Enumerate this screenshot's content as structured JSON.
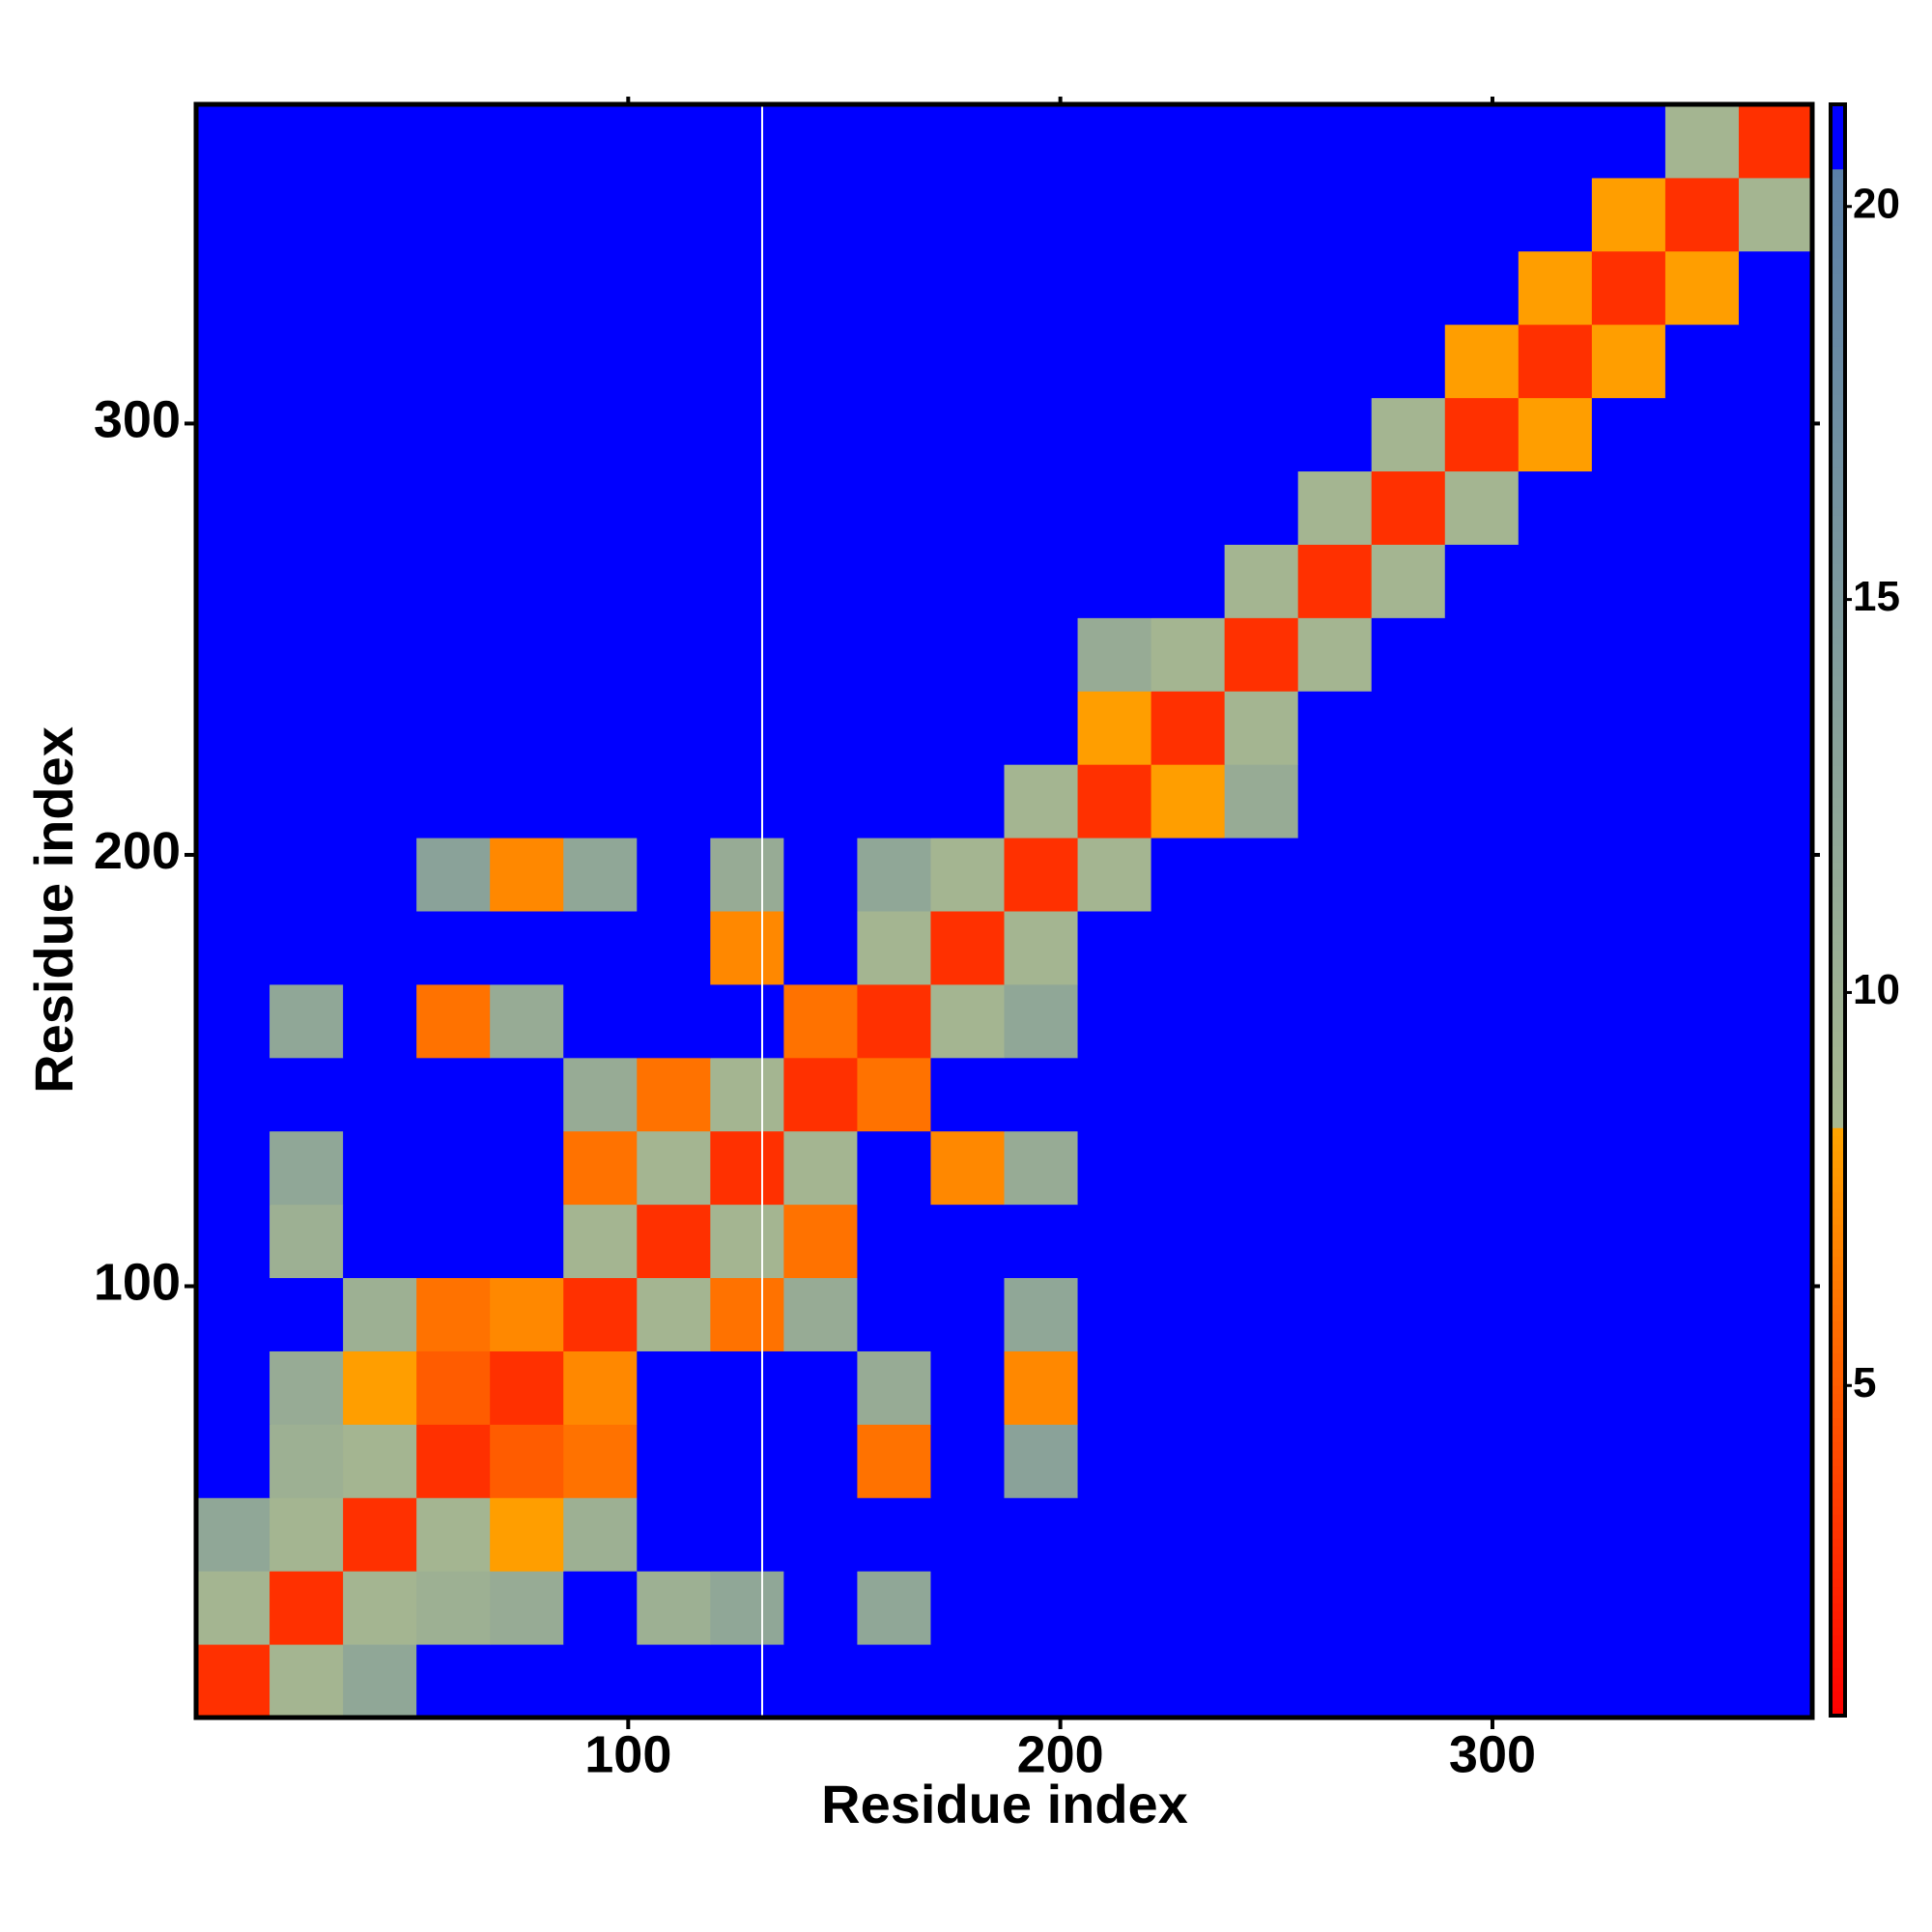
{
  "chart_data": {
    "type": "heatmap",
    "xlabel": "Residue index",
    "ylabel": "Residue index",
    "xlim": [
      0,
      374
    ],
    "ylim": [
      0,
      374
    ],
    "xticks": [
      100,
      200,
      300
    ],
    "yticks": [
      100,
      200,
      300
    ],
    "bins": [
      0,
      17,
      34,
      51,
      68,
      85,
      102,
      119,
      136,
      153,
      170,
      187,
      204,
      221,
      238,
      255,
      272,
      289,
      306,
      323,
      340,
      357,
      374
    ],
    "values": [
      [
        3,
        9,
        12,
        21,
        21,
        21,
        21,
        21,
        21,
        21,
        21,
        21,
        21,
        21,
        21,
        21,
        21,
        21,
        21,
        21,
        21,
        21
      ],
      [
        9,
        3,
        9,
        10,
        11,
        21,
        10,
        12,
        21,
        12,
        21,
        21,
        21,
        21,
        21,
        21,
        21,
        21,
        21,
        21,
        21,
        21
      ],
      [
        12,
        9,
        3,
        9,
        8,
        10,
        21,
        21,
        21,
        21,
        21,
        21,
        21,
        21,
        21,
        21,
        21,
        21,
        21,
        21,
        21,
        21
      ],
      [
        21,
        10,
        9,
        3,
        5,
        6,
        21,
        21,
        21,
        6,
        21,
        13,
        21,
        21,
        21,
        21,
        21,
        21,
        21,
        21,
        21,
        21
      ],
      [
        21,
        11,
        8,
        5,
        3,
        7,
        21,
        21,
        21,
        11,
        21,
        7,
        21,
        21,
        21,
        21,
        21,
        21,
        21,
        21,
        21,
        21
      ],
      [
        21,
        21,
        10,
        6,
        7,
        3,
        9,
        6,
        11,
        21,
        21,
        12,
        21,
        21,
        21,
        21,
        21,
        21,
        21,
        21,
        21,
        21
      ],
      [
        21,
        10,
        21,
        21,
        21,
        9,
        3,
        9,
        6,
        21,
        21,
        21,
        21,
        21,
        21,
        21,
        21,
        21,
        21,
        21,
        21,
        21
      ],
      [
        21,
        12,
        21,
        21,
        21,
        6,
        9,
        3,
        9,
        21,
        7,
        11,
        21,
        21,
        21,
        21,
        21,
        21,
        21,
        21,
        21,
        21
      ],
      [
        21,
        21,
        21,
        21,
        21,
        11,
        6,
        9,
        3,
        6,
        21,
        21,
        21,
        21,
        21,
        21,
        21,
        21,
        21,
        21,
        21,
        21
      ],
      [
        21,
        12,
        21,
        6,
        11,
        21,
        21,
        21,
        6,
        3,
        9,
        12,
        21,
        21,
        21,
        21,
        21,
        21,
        21,
        21,
        21,
        21
      ],
      [
        21,
        21,
        21,
        21,
        21,
        21,
        21,
        7,
        21,
        9,
        3,
        9,
        21,
        21,
        21,
        21,
        21,
        21,
        21,
        21,
        21,
        21
      ],
      [
        21,
        21,
        21,
        13,
        7,
        12,
        21,
        11,
        21,
        12,
        9,
        3,
        9,
        21,
        21,
        21,
        21,
        21,
        21,
        21,
        21,
        21
      ],
      [
        21,
        21,
        21,
        21,
        21,
        21,
        21,
        21,
        21,
        21,
        21,
        9,
        3,
        8,
        11,
        21,
        21,
        21,
        21,
        21,
        21,
        21
      ],
      [
        21,
        21,
        21,
        21,
        21,
        21,
        21,
        21,
        21,
        21,
        21,
        21,
        8,
        3,
        9,
        21,
        21,
        21,
        21,
        21,
        21,
        21
      ],
      [
        21,
        21,
        21,
        21,
        21,
        21,
        21,
        21,
        21,
        21,
        21,
        21,
        11,
        9,
        3,
        9,
        21,
        21,
        21,
        21,
        21,
        21
      ],
      [
        21,
        21,
        21,
        21,
        21,
        21,
        21,
        21,
        21,
        21,
        21,
        21,
        21,
        21,
        9,
        3,
        9,
        21,
        21,
        21,
        21,
        21
      ],
      [
        21,
        21,
        21,
        21,
        21,
        21,
        21,
        21,
        21,
        21,
        21,
        21,
        21,
        21,
        21,
        9,
        3,
        9,
        21,
        21,
        21,
        21
      ],
      [
        21,
        21,
        21,
        21,
        21,
        21,
        21,
        21,
        21,
        21,
        21,
        21,
        21,
        21,
        21,
        21,
        9,
        3,
        8,
        21,
        21,
        21
      ],
      [
        21,
        21,
        21,
        21,
        21,
        21,
        21,
        21,
        21,
        21,
        21,
        21,
        21,
        21,
        21,
        21,
        21,
        8,
        3,
        8,
        21,
        21
      ],
      [
        21,
        21,
        21,
        21,
        21,
        21,
        21,
        21,
        21,
        21,
        21,
        21,
        21,
        21,
        21,
        21,
        21,
        21,
        8,
        3,
        8,
        21
      ],
      [
        21,
        21,
        21,
        21,
        21,
        21,
        21,
        21,
        21,
        21,
        21,
        21,
        21,
        21,
        21,
        21,
        21,
        21,
        21,
        8,
        3,
        9
      ],
      [
        21,
        21,
        21,
        21,
        21,
        21,
        21,
        21,
        21,
        21,
        21,
        21,
        21,
        21,
        21,
        21,
        21,
        21,
        21,
        21,
        9,
        3
      ]
    ],
    "gap_x": 131,
    "colorbar_lim": [
      0.8,
      21.3
    ],
    "colorbar_ticks": [
      5,
      10,
      15,
      20
    ],
    "color_stops": [
      [
        0.8,
        "#ff0000"
      ],
      [
        8.3,
        "#ffa500"
      ],
      [
        8.3,
        "#a8b890"
      ],
      [
        20.5,
        "#5a7fa8"
      ],
      [
        20.5,
        "#0000ff"
      ],
      [
        21.3,
        "#0000ff"
      ]
    ],
    "gap_color": "#ffffff"
  }
}
